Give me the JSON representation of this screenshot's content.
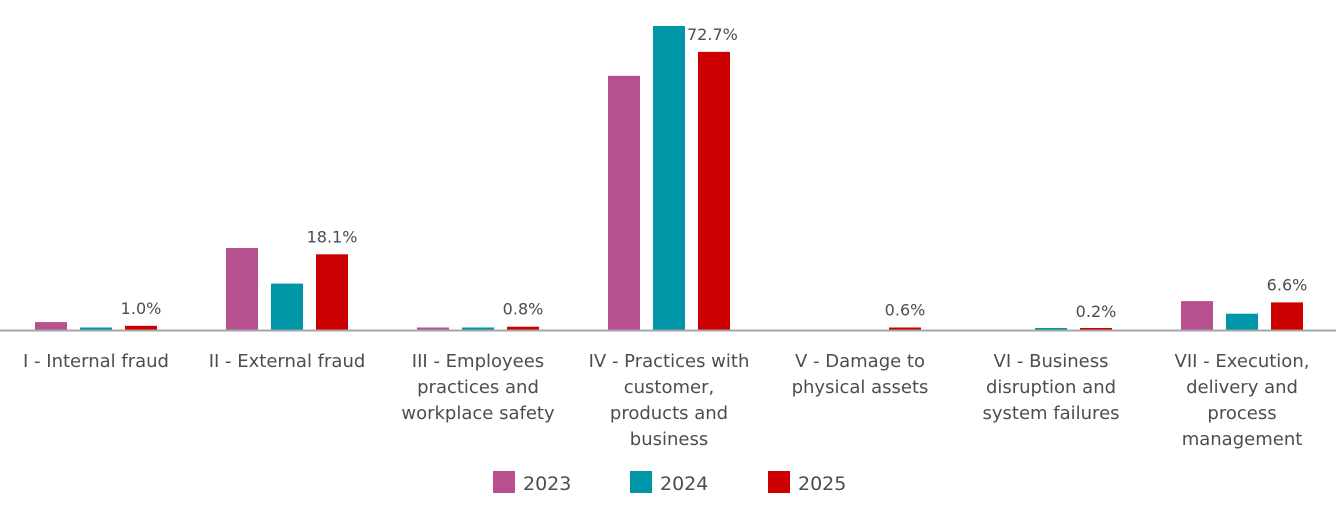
{
  "chart_data": {
    "type": "bar",
    "categories": [
      [
        "I - Internal fraud"
      ],
      [
        "II - External fraud"
      ],
      [
        "III - Employees",
        "practices and",
        "workplace safety"
      ],
      [
        "IV - Practices with",
        "customer,",
        "products and",
        "business"
      ],
      [
        "V - Damage to",
        "physical assets"
      ],
      [
        "VI - Business",
        "disruption and",
        "system failures"
      ],
      [
        "VII - Execution,",
        "delivery and",
        "process",
        "management"
      ]
    ],
    "series": [
      {
        "name": "2023",
        "color": "#b7508f",
        "values": [
          1.9,
          19.6,
          0.6,
          60.8,
          0.0,
          0.0,
          6.9
        ]
      },
      {
        "name": "2024",
        "color": "#0096a8",
        "values": [
          0.6,
          11.1,
          0.6,
          72.7,
          0.0,
          0.4,
          3.9
        ]
      },
      {
        "name": "2025",
        "color": "#cc0000",
        "values": [
          1.0,
          18.1,
          0.8,
          66.5,
          0.6,
          0.2,
          6.6
        ]
      }
    ],
    "data_labels": [
      {
        "category_index": 0,
        "series_index": 2,
        "text": "1.0%"
      },
      {
        "category_index": 1,
        "series_index": 2,
        "text": "18.1%"
      },
      {
        "category_index": 2,
        "series_index": 2,
        "text": "0.8%"
      },
      {
        "category_index": 3,
        "series_index": 1,
        "text": "72.7%"
      },
      {
        "category_index": 4,
        "series_index": 2,
        "text": "0.6%"
      },
      {
        "category_index": 5,
        "series_index": 2,
        "text": "0.2%"
      },
      {
        "category_index": 6,
        "series_index": 2,
        "text": "6.6%"
      }
    ],
    "ylim": [
      0,
      72.7
    ],
    "grid": false,
    "legend_position": "bottom-center",
    "axis_color": "#a6a6a6",
    "text_color": "#4d4d4d"
  }
}
